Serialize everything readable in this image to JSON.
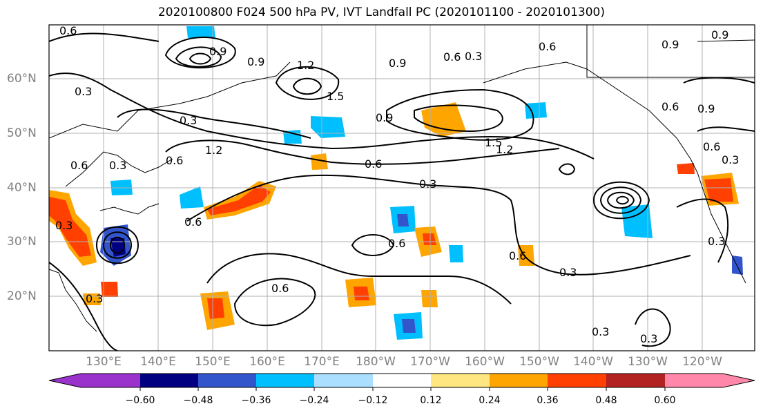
{
  "title": "2020100800 F024 500 hPa PV, IVT Landfall PC (2020101100 - 2020101300)",
  "lat_labels": [
    "60°N",
    "50°N",
    "40°N",
    "30°N",
    "20°N"
  ],
  "lon_labels": [
    "130°E",
    "140°E",
    "150°E",
    "160°E",
    "170°E",
    "180°W",
    "170°W",
    "160°W",
    "150°W",
    "140°W",
    "130°W",
    "120°W"
  ],
  "colorbar": {
    "tick_labels": [
      "−0.60",
      "−0.48",
      "−0.36",
      "−0.24",
      "−0.12",
      "0.12",
      "0.24",
      "0.36",
      "0.48",
      "0.60"
    ],
    "colors": [
      "#9933cc",
      "#000080",
      "#3355cc",
      "#00bfff",
      "#aadfff",
      "#ffffff",
      "#ffe680",
      "#ffa500",
      "#ff4000",
      "#b22222",
      "#ff88aa"
    ]
  },
  "contour_labels": [
    "0.6",
    "0.9",
    "0.9",
    "1.2",
    "1.5",
    "0.6",
    "0.3",
    "0.3",
    "0.3",
    "0.6",
    "0.3",
    "0.6",
    "1.2",
    "0.9",
    "0.6",
    "1.2",
    "1.5",
    "0.9",
    "0.6",
    "0.3",
    "0.6",
    "0.6",
    "0.3",
    "0.3",
    "0.3",
    "0.6",
    "0.9",
    "0.6",
    "0.3",
    "0.3",
    "0.9",
    "0.6",
    "0.6",
    "0.3",
    "0.3",
    "0.9"
  ]
}
